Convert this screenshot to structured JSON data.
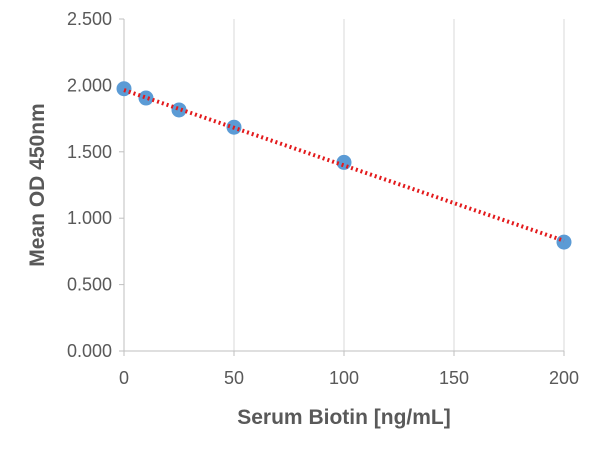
{
  "chart_data": {
    "type": "scatter",
    "title": "",
    "xlabel": "Serum Biotin [ng/mL]",
    "ylabel": "Mean OD 450nm",
    "xlim": [
      0,
      200
    ],
    "ylim": [
      0,
      2.5
    ],
    "x_ticks": [
      0,
      50,
      100,
      150,
      200
    ],
    "x_tick_labels": [
      "0",
      "50",
      "100",
      "150",
      "200"
    ],
    "y_ticks": [
      0,
      0.5,
      1.0,
      1.5,
      2.0,
      2.5
    ],
    "y_tick_labels": [
      "0.000",
      "0.500",
      "1.000",
      "1.500",
      "2.000",
      "2.500"
    ],
    "grid": "vertical",
    "legend": "none",
    "series": [
      {
        "x": [
          0,
          10,
          25,
          50,
          100,
          200
        ],
        "y": [
          1.975,
          1.905,
          1.815,
          1.685,
          1.42,
          0.82
        ],
        "color": "#5B9BD5"
      }
    ],
    "trendline": {
      "type": "linear",
      "style": "dotted",
      "color": "#E31A1C",
      "x": [
        0,
        200
      ],
      "y": [
        1.965,
        0.83
      ]
    }
  }
}
